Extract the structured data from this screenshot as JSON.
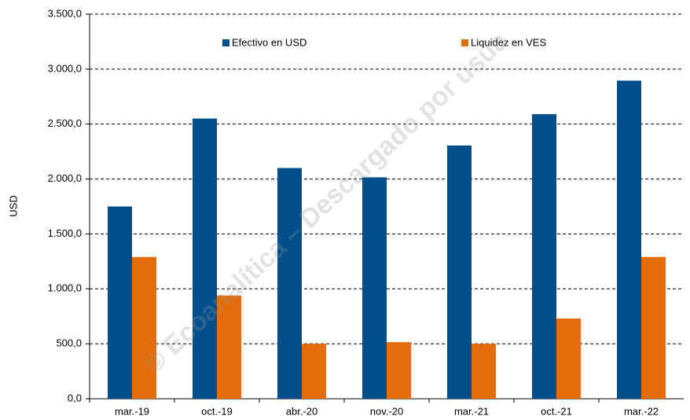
{
  "chart_data": {
    "type": "bar",
    "y_label": "USD",
    "watermark": "© Ecoanalítica – Descargado por usua",
    "categories": [
      "mar.-19",
      "oct.-19",
      "abr.-20",
      "nov.-20",
      "mar.-21",
      "oct.-21",
      "mar.-22"
    ],
    "series": [
      {
        "name": "Efectivo en USD",
        "color": "#004f8c",
        "values": [
          1750,
          2550,
          2100,
          2015,
          2305,
          2590,
          2895
        ]
      },
      {
        "name": "Liquidez en VES",
        "color": "#e46c0a",
        "values": [
          1290,
          940,
          500,
          515,
          500,
          730,
          1290
        ]
      }
    ],
    "ylim": [
      0,
      3500
    ],
    "yticks": [
      {
        "value": 0,
        "label": "0,0"
      },
      {
        "value": 500,
        "label": "500,0"
      },
      {
        "value": 1000,
        "label": "1.000,0"
      },
      {
        "value": 1500,
        "label": "1.500,0"
      },
      {
        "value": 2000,
        "label": "2.000,0"
      },
      {
        "value": 2500,
        "label": "2.500,0"
      },
      {
        "value": 3000,
        "label": "3.000,0"
      },
      {
        "value": 3500,
        "label": "3.500,0"
      }
    ],
    "grid": true,
    "legend": "top"
  }
}
